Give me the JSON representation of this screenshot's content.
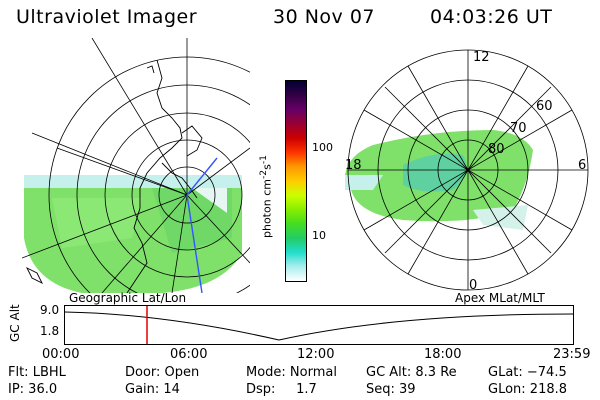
{
  "header": {
    "title": "Ultraviolet Imager",
    "date": "30 Nov 07",
    "time": "04:03:26 UT"
  },
  "colorbar": {
    "unit_prefix": "photon cm",
    "unit_exp1": "-2",
    "unit_mid": "s",
    "unit_exp2": "-1",
    "ticks": [
      "100",
      "10"
    ],
    "colors": [
      "#000033",
      "#330044",
      "#660066",
      "#990033",
      "#cc0000",
      "#ff3300",
      "#ff9900",
      "#ffcc00",
      "#ccff00",
      "#88ee00",
      "#44dd22",
      "#22cc66",
      "#22ddcc",
      "#aaeeee",
      "#ffffff"
    ]
  },
  "geo_map": {
    "label": "Geographic Lat/Lon"
  },
  "apex_map": {
    "label": "Apex MLat/MLT",
    "hour_labels": {
      "top": "12",
      "left": "18",
      "right": "6",
      "bottom": "0"
    },
    "lat_labels": [
      "60",
      "70",
      "80"
    ]
  },
  "timeline": {
    "y_label": "GC Alt",
    "y_ticks": [
      "9.0",
      "1.8"
    ],
    "x_ticks": [
      "00:00",
      "06:00",
      "12:00",
      "18:00",
      "23:59"
    ],
    "marker_color": "#dd0000"
  },
  "footer": {
    "row1": {
      "filter": "Flt: LBHL",
      "door": "Door: Open",
      "mode": "Mode: Normal",
      "gc_alt": "GC Alt: 8.3 Re",
      "glat": "GLat: −74.5"
    },
    "row2": {
      "ip": "IP: 36.0",
      "gain": "Gain: 14",
      "dsp": "Dsp:     1.7",
      "seq": "Seq: 39",
      "glon": "GLon: 218.8"
    }
  }
}
